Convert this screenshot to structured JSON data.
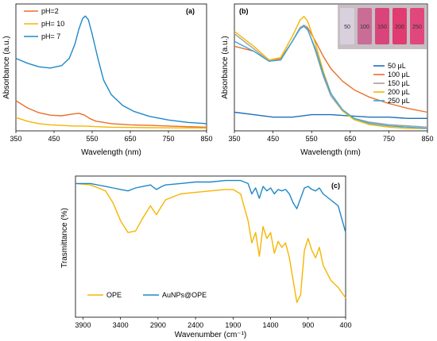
{
  "colors": {
    "orange": "#e8702a",
    "yellow": "#f6b500",
    "blue": "#1e88c8",
    "gray": "#a0a0a0",
    "darkblue": "#1f6fb5",
    "teal": "#3aa6d8"
  },
  "chart_data": [
    {
      "panel": "a",
      "panel_label": "(a)",
      "type": "line",
      "xlabel": "Wavelength (nm)",
      "ylabel": "Absorbance (a.u.)",
      "xlim": [
        350,
        850
      ],
      "xticks": [
        "350",
        "450",
        "550",
        "650",
        "750",
        "850"
      ],
      "legend_position": "top-left",
      "series": [
        {
          "name": "pH=2",
          "color": "#e8702a",
          "x": [
            350,
            380,
            410,
            440,
            470,
            500,
            515,
            530,
            545,
            560,
            600,
            650,
            700,
            750,
            800,
            850
          ],
          "y": [
            0.25,
            0.19,
            0.15,
            0.13,
            0.125,
            0.14,
            0.145,
            0.13,
            0.1,
            0.08,
            0.06,
            0.05,
            0.045,
            0.04,
            0.035,
            0.03
          ]
        },
        {
          "name": "pH= 10",
          "color": "#f6b500",
          "x": [
            350,
            380,
            410,
            440,
            470,
            500,
            530,
            560,
            600,
            650,
            700,
            750,
            800,
            850
          ],
          "y": [
            0.11,
            0.08,
            0.06,
            0.05,
            0.045,
            0.04,
            0.04,
            0.035,
            0.03,
            0.028,
            0.026,
            0.025,
            0.024,
            0.023
          ]
        },
        {
          "name": "pH= 7",
          "color": "#1e88c8",
          "x": [
            350,
            380,
            410,
            440,
            470,
            490,
            505,
            515,
            525,
            532,
            540,
            550,
            565,
            580,
            600,
            630,
            660,
            700,
            750,
            800,
            850
          ],
          "y": [
            0.6,
            0.56,
            0.53,
            0.52,
            0.54,
            0.6,
            0.72,
            0.84,
            0.93,
            0.95,
            0.92,
            0.8,
            0.6,
            0.42,
            0.3,
            0.21,
            0.16,
            0.12,
            0.09,
            0.07,
            0.06
          ]
        }
      ]
    },
    {
      "panel": "b",
      "panel_label": "(b)",
      "type": "line",
      "xlabel": "Wavelength (nm)",
      "ylabel": "Absorbance (a.u.)",
      "xlim": [
        350,
        850
      ],
      "xticks": [
        "350",
        "450",
        "550",
        "650",
        "750",
        "850"
      ],
      "legend_position": "right",
      "inset_labels": [
        "50",
        "100",
        "150",
        "200",
        "250"
      ],
      "series": [
        {
          "name": "50  μL",
          "color": "#1f6fb5",
          "x": [
            350,
            400,
            450,
            500,
            550,
            600,
            650,
            700,
            750,
            800,
            850
          ],
          "y": [
            0.25,
            0.23,
            0.21,
            0.21,
            0.23,
            0.23,
            0.22,
            0.21,
            0.21,
            0.2,
            0.2
          ]
        },
        {
          "name": "100  μL",
          "color": "#e8702a",
          "x": [
            350,
            400,
            440,
            470,
            500,
            520,
            530,
            540,
            560,
            580,
            600,
            630,
            660,
            700,
            750,
            800,
            850
          ],
          "y": [
            0.78,
            0.74,
            0.66,
            0.68,
            0.82,
            0.93,
            0.95,
            0.93,
            0.82,
            0.7,
            0.6,
            0.5,
            0.43,
            0.37,
            0.32,
            0.28,
            0.25
          ]
        },
        {
          "name": "150  μL",
          "color": "#a0a0a0",
          "x": [
            350,
            400,
            440,
            470,
            500,
            520,
            530,
            540,
            560,
            580,
            600,
            630,
            660,
            700,
            750,
            800,
            850
          ],
          "y": [
            0.88,
            0.76,
            0.66,
            0.67,
            0.82,
            0.93,
            0.95,
            0.92,
            0.74,
            0.54,
            0.38,
            0.26,
            0.2,
            0.17,
            0.15,
            0.14,
            0.13
          ]
        },
        {
          "name": "200  μL",
          "color": "#f6b500",
          "x": [
            350,
            400,
            440,
            470,
            500,
            520,
            530,
            540,
            560,
            580,
            600,
            630,
            660,
            700,
            750,
            800,
            850
          ],
          "y": [
            0.9,
            0.78,
            0.67,
            0.69,
            0.86,
            0.99,
            1.02,
            0.98,
            0.8,
            0.58,
            0.4,
            0.26,
            0.19,
            0.15,
            0.13,
            0.12,
            0.12
          ]
        },
        {
          "name": "250  μL",
          "color": "#3aa6d8",
          "x": [
            350,
            400,
            440,
            470,
            500,
            520,
            530,
            540,
            560,
            580,
            600,
            630,
            660,
            700,
            750,
            800,
            850
          ],
          "y": [
            0.82,
            0.74,
            0.66,
            0.67,
            0.82,
            0.92,
            0.94,
            0.91,
            0.76,
            0.56,
            0.4,
            0.27,
            0.2,
            0.16,
            0.14,
            0.13,
            0.12
          ]
        }
      ]
    },
    {
      "panel": "c",
      "panel_label": "(c)",
      "type": "line",
      "xlabel": "Wavenumber  (cm⁻¹)",
      "ylabel": "Trasmittance (%)",
      "xlim": [
        4000,
        400
      ],
      "xticks": [
        "3900",
        "3400",
        "2900",
        "2400",
        "1900",
        "1400",
        "900",
        "400"
      ],
      "legend_position": "bottom-left",
      "series": [
        {
          "name": "OPE",
          "color": "#f6b500",
          "x": [
            4000,
            3800,
            3600,
            3500,
            3400,
            3300,
            3200,
            3100,
            3000,
            2950,
            2920,
            2850,
            2800,
            2600,
            2400,
            2200,
            2000,
            1900,
            1800,
            1700,
            1650,
            1600,
            1550,
            1500,
            1450,
            1400,
            1350,
            1300,
            1250,
            1200,
            1150,
            1100,
            1050,
            1000,
            950,
            900,
            850,
            800,
            750,
            700,
            600,
            500,
            400
          ],
          "y": [
            0.95,
            0.94,
            0.9,
            0.82,
            0.7,
            0.62,
            0.63,
            0.72,
            0.8,
            0.76,
            0.74,
            0.8,
            0.84,
            0.88,
            0.89,
            0.9,
            0.91,
            0.91,
            0.88,
            0.7,
            0.55,
            0.62,
            0.46,
            0.66,
            0.58,
            0.62,
            0.48,
            0.56,
            0.52,
            0.55,
            0.45,
            0.3,
            0.15,
            0.2,
            0.5,
            0.58,
            0.5,
            0.45,
            0.52,
            0.4,
            0.3,
            0.25,
            0.18
          ]
        },
        {
          "name": "AuNPs@OPE",
          "color": "#1e88c8",
          "x": [
            4000,
            3800,
            3600,
            3500,
            3400,
            3300,
            3200,
            3100,
            3000,
            2950,
            2920,
            2850,
            2800,
            2600,
            2400,
            2200,
            2000,
            1900,
            1800,
            1700,
            1650,
            1600,
            1550,
            1500,
            1450,
            1400,
            1350,
            1300,
            1250,
            1200,
            1150,
            1100,
            1050,
            1000,
            950,
            900,
            850,
            800,
            750,
            700,
            600,
            500,
            400
          ],
          "y": [
            0.95,
            0.95,
            0.93,
            0.92,
            0.91,
            0.9,
            0.92,
            0.93,
            0.94,
            0.92,
            0.91,
            0.93,
            0.94,
            0.95,
            0.96,
            0.96,
            0.97,
            0.97,
            0.97,
            0.95,
            0.88,
            0.92,
            0.85,
            0.93,
            0.9,
            0.92,
            0.88,
            0.91,
            0.9,
            0.91,
            0.88,
            0.82,
            0.78,
            0.85,
            0.92,
            0.93,
            0.91,
            0.9,
            0.92,
            0.88,
            0.84,
            0.8,
            0.62
          ]
        }
      ]
    }
  ]
}
